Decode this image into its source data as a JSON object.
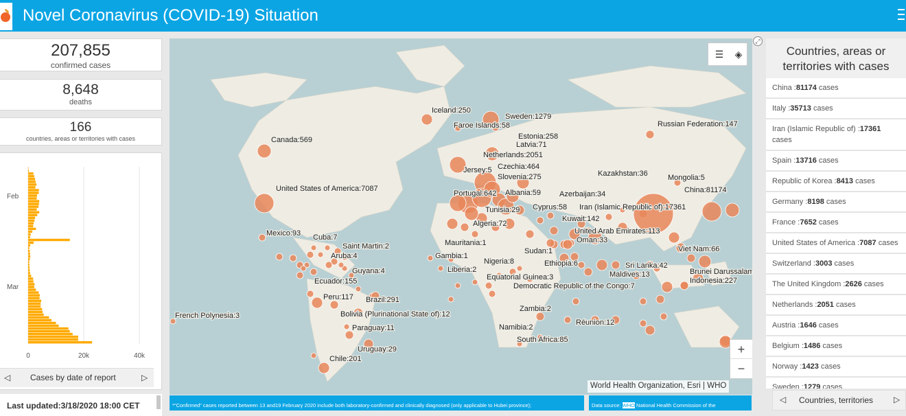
{
  "header": {
    "title": "Novel Coronavirus (COVID-19) Situation"
  },
  "stats": {
    "confirmed_value": "207,855",
    "confirmed_label": "confirmed cases",
    "deaths_value": "8,648",
    "deaths_label": "deaths",
    "countries_value": "166",
    "countries_label": "countries, areas or territories with cases"
  },
  "chart_data": {
    "type": "bar",
    "orientation": "horizontal",
    "title": "",
    "y_tick_labels": [
      "Feb",
      "Mar"
    ],
    "x_tick_labels": [
      "0",
      "20k",
      "40k"
    ],
    "xlim": [
      0,
      40000
    ],
    "grid": true,
    "bar_color": "#ffaa00",
    "values": [
      30,
      280,
      1900,
      2200,
      2500,
      2700,
      3000,
      2600,
      3900,
      3800,
      3200,
      3100,
      4000,
      3900,
      3700,
      3100,
      4000,
      3300,
      2500,
      2300,
      2000,
      1800,
      2800,
      1500,
      900,
      700,
      15000,
      2000,
      750,
      400,
      600,
      700,
      800,
      600,
      400,
      450,
      500,
      600,
      700,
      1100,
      1800,
      1900,
      2300,
      2200,
      2800,
      3800,
      4200,
      4100,
      4700,
      4500,
      4500,
      5000,
      5200,
      5600,
      7500,
      8400,
      10000,
      11000,
      14500,
      15000,
      16000,
      18000,
      18000,
      23000
    ]
  },
  "chart_nav": {
    "label": "Cases by date of report",
    "prev": "◁",
    "next": "▷"
  },
  "last_updated": "Last updated:3/18/2020 18:00 CET",
  "map": {
    "attribution": "World Health Organization, Esri | WHO",
    "zoom_in": "+",
    "zoom_out": "−",
    "legend_icon": "list-icon",
    "layers_icon": "layers-icon",
    "labels": [
      "Iceland:250",
      "Sweden:1279",
      "Faroe Islands:58",
      "Russian Federation:147",
      "Estonia:258",
      "Canada:569",
      "Latvia:71",
      "Netherlands:2051",
      "Jersey:5",
      "Czechia:464",
      "Kazakhstan:36",
      "Slovenia:275",
      "Mongolia:5",
      "United States of America:7087",
      "China:81174",
      "Portugal:642",
      "Albania:59",
      "Azerbaijan:34",
      "Cyprus:58",
      "Iran (Islamic Republic of):17361",
      "Tunisia:29",
      "Kuwait:142",
      "Algeria:72",
      "United Arab Emirates:113",
      "Mexico:93",
      "Oman:33",
      "Cuba:7",
      "Saint Martin:2",
      "Mauritania:1",
      "Sudan:1",
      "Viet Nam:66",
      "Aruba:4",
      "Gambia:1",
      "Nigeria:8",
      "Ethiopia:6",
      "Sri Lanka:42",
      "Guyana:4",
      "Liberia:2",
      "Brunei Darussalam",
      "Maldives:13",
      "Equatorial Guinea:3",
      "Indonesia:227",
      "Ecuador:155",
      "Democratic Republic of the Congo:7",
      "Peru:117",
      "Brazil:291",
      "Zambia:2",
      "French Polynesia:3",
      "Bolivia (Plurinational State of):12",
      "Réunion:12",
      "Namibia:2",
      "Paraguay:11",
      "South Africa:85",
      "Uruguay:29",
      "Chile:201"
    ]
  },
  "footnote_left": "*\"Confirmed\" cases reported between 13 and19 February 2020 include both laboratory-confirmed and clinically diagnosed (only  applicable to Hubei province);",
  "footnote_right_prefix": "Data source: ",
  "footnote_right_link": "WHO",
  "footnote_right_rest": " National Health Commission of the",
  "right_panel": {
    "title": "Countries, areas or territories with cases",
    "suffix": " cases",
    "items": [
      {
        "name": "China :",
        "value": "81174"
      },
      {
        "name": "Italy :",
        "value": "35713"
      },
      {
        "name": "Iran (Islamic Republic of) :",
        "value": "17361"
      },
      {
        "name": "Spain :",
        "value": "13716"
      },
      {
        "name": "Republic of Korea :",
        "value": "8413"
      },
      {
        "name": "Germany :",
        "value": "8198"
      },
      {
        "name": "France :",
        "value": "7652"
      },
      {
        "name": "United States of America :",
        "value": "7087"
      },
      {
        "name": "Switzerland :",
        "value": "3003"
      },
      {
        "name": "The United Kingdom :",
        "value": "2626"
      },
      {
        "name": "Netherlands :",
        "value": "2051"
      },
      {
        "name": "Austria :",
        "value": "1646"
      },
      {
        "name": "Belgium :",
        "value": "1486"
      },
      {
        "name": "Norway :",
        "value": "1423"
      },
      {
        "name": "Sweden :",
        "value": "1279"
      }
    ],
    "nav_label": "Countries, territories",
    "prev": "◁",
    "next": "▷"
  },
  "colors": {
    "header": "#0ca5e4",
    "bubble": "#e8875a",
    "bar": "#ffaa00"
  }
}
